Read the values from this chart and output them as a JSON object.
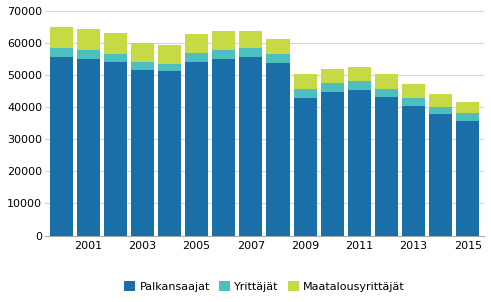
{
  "years": [
    2000,
    2001,
    2002,
    2003,
    2004,
    2005,
    2006,
    2007,
    2008,
    2009,
    2010,
    2011,
    2012,
    2013,
    2014,
    2015
  ],
  "palkansaajat": [
    55500,
    55000,
    54000,
    51500,
    51200,
    54200,
    55000,
    55500,
    53800,
    43000,
    44700,
    45400,
    43200,
    40500,
    37800,
    35800
  ],
  "yrittajat": [
    2800,
    2700,
    2600,
    2500,
    2400,
    2600,
    2800,
    2900,
    2700,
    2600,
    2700,
    2700,
    2600,
    2400,
    2400,
    2300
  ],
  "maatalousyrittajat": [
    6700,
    6800,
    6400,
    6000,
    5700,
    6100,
    5800,
    5400,
    4700,
    4600,
    4400,
    4500,
    4500,
    4300,
    3900,
    3600
  ],
  "colors": {
    "palkansaajat": "#1a6fa8",
    "yrittajat": "#4dbfbf",
    "maatalousyrittajat": "#c8d946"
  },
  "legend_labels": [
    "Palkansaajat",
    "Yrittäjät",
    "Maatalousyrittäjät"
  ],
  "ylim": [
    0,
    70000
  ],
  "yticks": [
    0,
    10000,
    20000,
    30000,
    40000,
    50000,
    60000,
    70000
  ],
  "bar_width": 0.85,
  "background_color": "#ffffff"
}
